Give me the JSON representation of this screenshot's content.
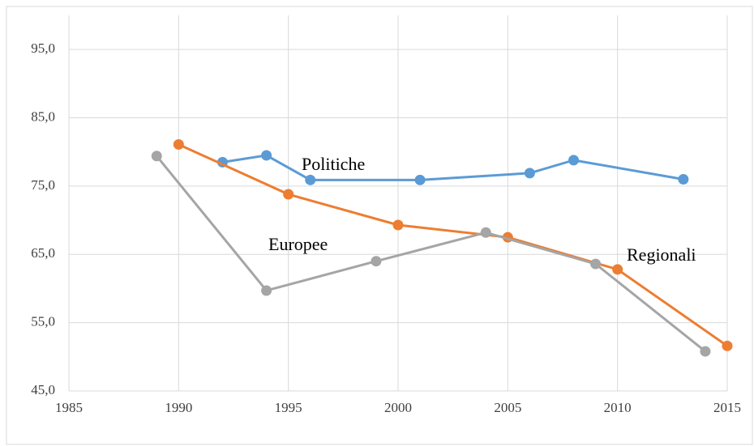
{
  "chart_data": {
    "type": "line",
    "xlim": [
      1985,
      2015
    ],
    "xticks": [
      1985,
      1990,
      1995,
      2000,
      2005,
      2010,
      2015
    ],
    "ylim": [
      45,
      100
    ],
    "yticks": [
      {
        "value": 45,
        "label": "45,0"
      },
      {
        "value": 55,
        "label": "55,0"
      },
      {
        "value": 65,
        "label": "65,0"
      },
      {
        "value": 75,
        "label": "75,0"
      },
      {
        "value": 85,
        "label": "85,0"
      },
      {
        "value": 95,
        "label": "95,0"
      }
    ],
    "grid": true,
    "series": [
      {
        "name": "Politiche",
        "color": "#5b9bd5",
        "x": [
          1992,
          1994,
          1996,
          2001,
          2006,
          2008,
          2013
        ],
        "values": [
          78.5,
          79.5,
          75.9,
          75.9,
          76.9,
          78.8,
          76.0
        ]
      },
      {
        "name": "Regionali",
        "color": "#ed7d31",
        "x": [
          1990,
          1995,
          2000,
          2005,
          2010,
          2015
        ],
        "values": [
          81.1,
          73.8,
          69.3,
          67.5,
          62.8,
          51.6
        ]
      },
      {
        "name": "Europee",
        "color": "#a5a5a5",
        "x": [
          1989,
          1994,
          1999,
          2004,
          2009,
          2014
        ],
        "values": [
          79.4,
          59.7,
          64.0,
          68.2,
          63.6,
          50.8
        ]
      }
    ]
  }
}
